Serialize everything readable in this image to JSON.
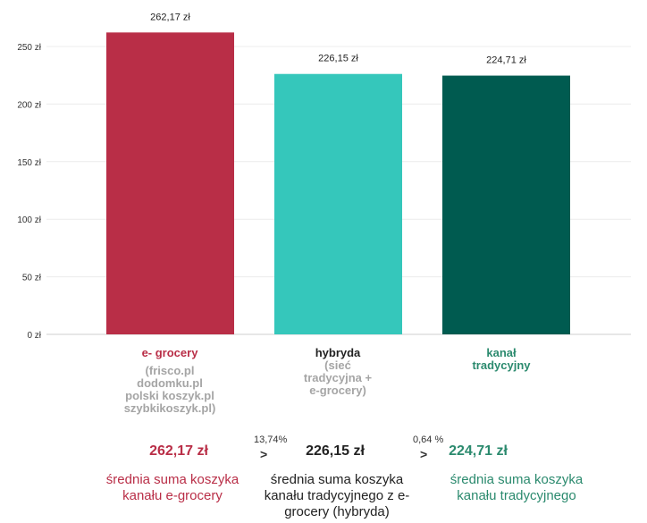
{
  "chart_data": {
    "type": "bar",
    "categories": [
      "e- grocery",
      "hybryda",
      "kanał tradycyjny"
    ],
    "values": [
      262.17,
      226.15,
      224.71
    ],
    "value_labels": [
      "262,17 zł",
      "226,15 zł",
      "224,71 zł"
    ],
    "colors": [
      "#b92e47",
      "#35c7bb",
      "#005b50"
    ],
    "yticks": [
      0,
      50,
      100,
      150,
      200,
      250
    ],
    "ytick_labels": [
      "0 zł",
      "50 zł",
      "100 zł",
      "150 zł",
      "200 zł",
      "250 zł"
    ],
    "ylim": [
      0,
      250
    ],
    "grid": true,
    "title": "",
    "xlabel": "",
    "ylabel": ""
  },
  "categories": [
    {
      "name": "e- grocery",
      "sub": "(frisco.pl dodomku.pl polski koszyk.pl szybkikoszyk.pl)",
      "color": "#b92e47"
    },
    {
      "name": "hybryda",
      "sub": "(sieć tradycyjna + e-grocery)",
      "color": "#222222"
    },
    {
      "name": "kanał tradycyjny",
      "sub": "",
      "color": "#2b8a6e"
    }
  ],
  "summary": {
    "values": [
      "262,17 zł",
      "226,15 zł",
      "224,71 zł"
    ],
    "descs": [
      "średnia suma koszyka kanału e-grocery",
      "średnia suma koszyka kanału tradycyjnego z e-grocery (hybryda)",
      "średnia suma koszyka kanału tradycyjnego"
    ],
    "colors": [
      "#b92e47",
      "#222222",
      "#2b8a6e"
    ],
    "diffs": [
      "13,74%",
      "0,64 %"
    ],
    "gt": ">"
  }
}
